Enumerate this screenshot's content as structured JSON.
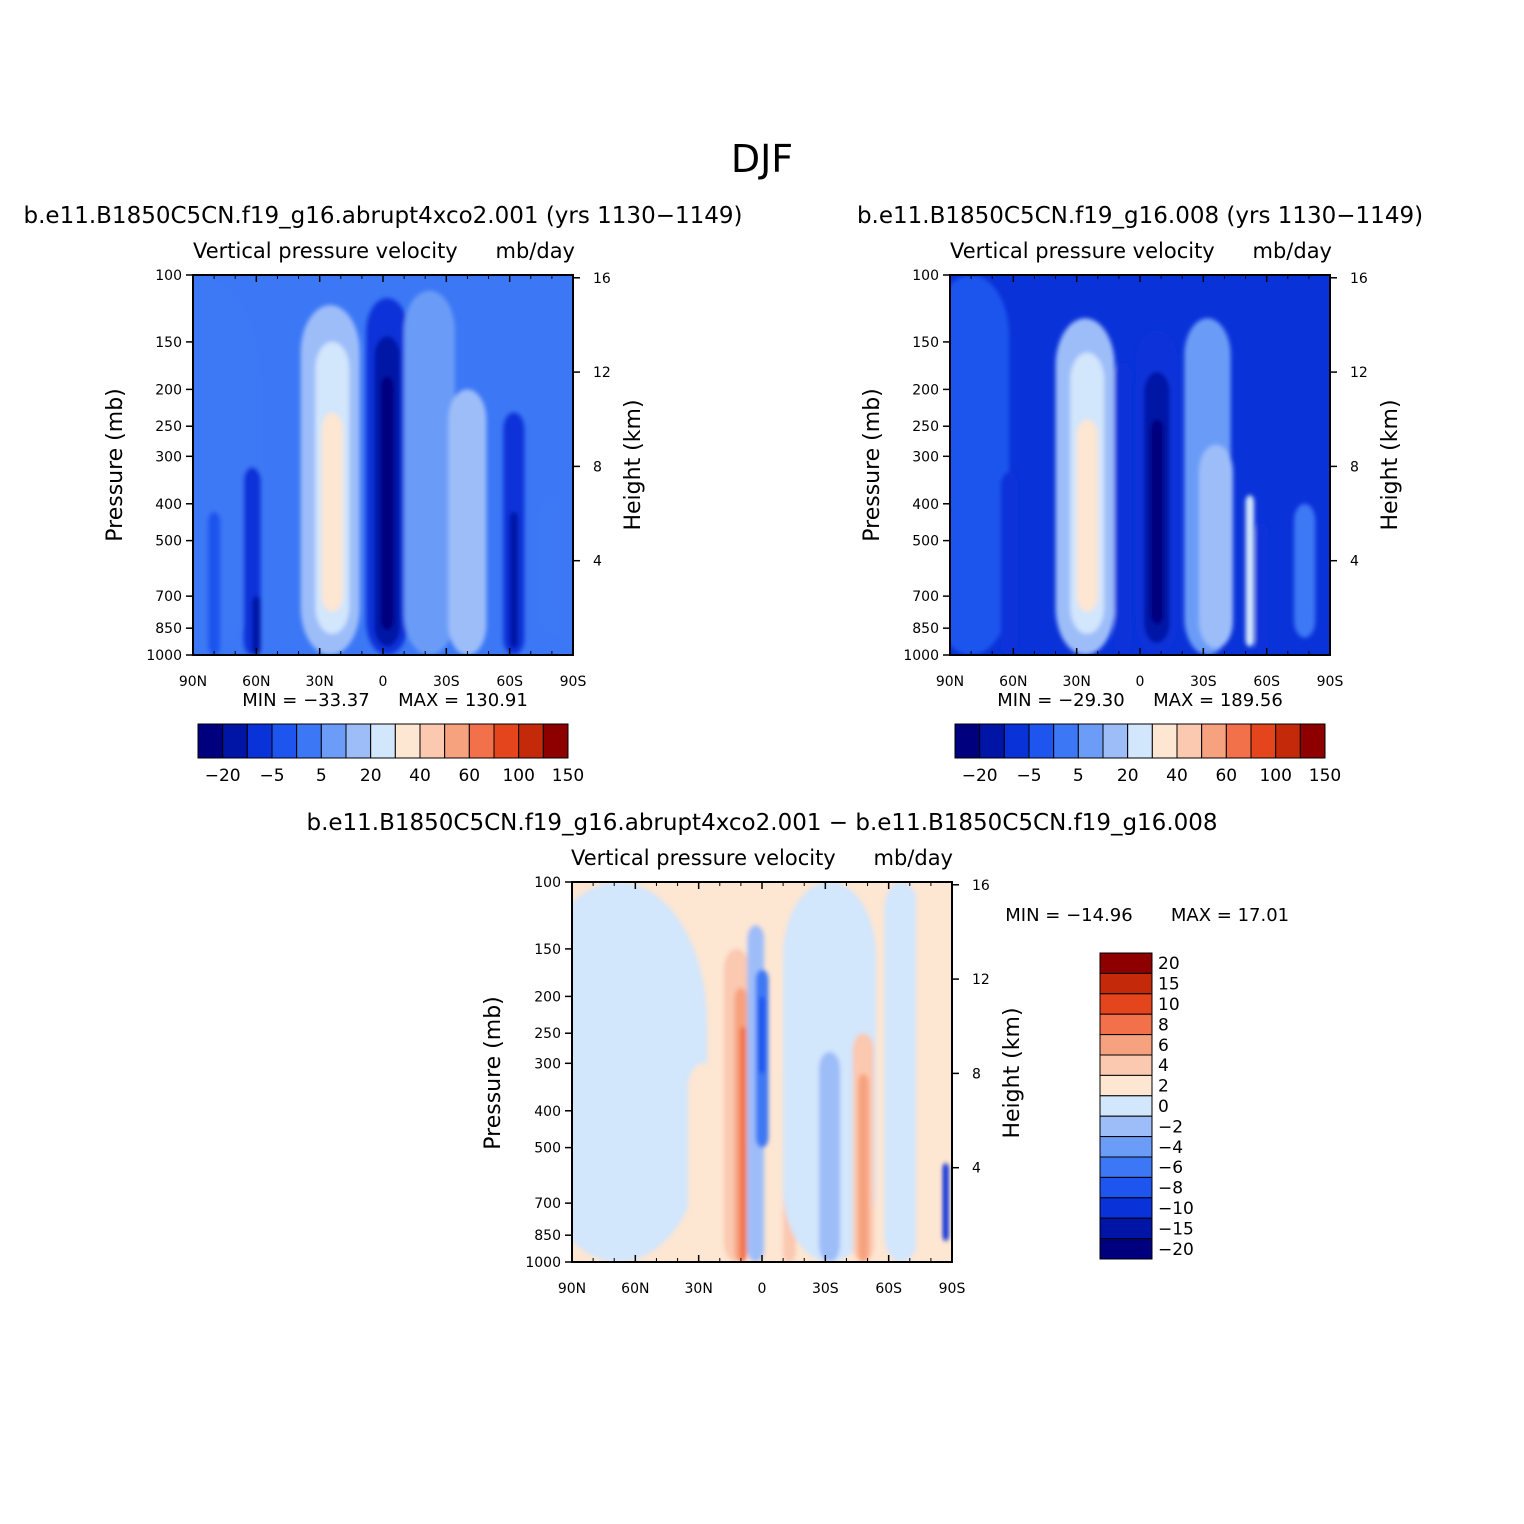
{
  "figure": {
    "title": "DJF"
  },
  "colors": {
    "abs_levels": [
      "#00007f",
      "#0014a5",
      "#0a32d9",
      "#1e55ee",
      "#3c78f5",
      "#6b9cf7",
      "#9dbdf9",
      "#d2e6fc",
      "#fde6d2",
      "#fbc8b0",
      "#f7a27e",
      "#f3714a",
      "#e5451c",
      "#c42a0a",
      "#8e0000"
    ],
    "diff_levels": [
      "#00007f",
      "#0014a5",
      "#0a32d9",
      "#1e55ee",
      "#3c78f5",
      "#6b9cf7",
      "#9dbdf9",
      "#d2e6fc",
      "#fde6d2",
      "#fbc8b0",
      "#f7a27e",
      "#f3714a",
      "#e5451c",
      "#c42a0a",
      "#8e0000"
    ]
  },
  "chart_data": [
    {
      "id": "panel-abrupt4xco2",
      "type": "heatmap",
      "run_title": "b.e11.B1850C5CN.f19_g16.abrupt4xco2.001 (yrs 1130−1149)",
      "variable_label": "Vertical pressure velocity",
      "units_label": "mb/day",
      "xlabel": "",
      "ylabel": "Pressure (mb)",
      "y2label": "Height (km)",
      "x_ticks": [
        "90N",
        "60N",
        "30N",
        "0",
        "30S",
        "60S",
        "90S"
      ],
      "x_range": [
        90,
        -90
      ],
      "y_ticks": [
        "100",
        "150",
        "200",
        "250",
        "300",
        "400",
        "500",
        "700",
        "850",
        "1000"
      ],
      "y_values": [
        100,
        150,
        200,
        250,
        300,
        400,
        500,
        700,
        850,
        1000
      ],
      "y2_ticks": [
        "16",
        "12",
        "8",
        "4"
      ],
      "y2_values": [
        16,
        12,
        8,
        4
      ],
      "min_label": "MIN = −33.37",
      "max_label": "MAX = 130.91",
      "min_value": -33.37,
      "max_value": 130.91,
      "colorbar_labels": [
        "−20",
        "−5",
        "5",
        "20",
        "40",
        "60",
        "100",
        "150"
      ],
      "field": [
        {
          "lat": 88,
          "p_top": 100,
          "p_bot": 1000,
          "level": 4,
          "width": 30
        },
        {
          "lat": 80,
          "p_top": 420,
          "p_bot": 1000,
          "level": 3,
          "width": 3
        },
        {
          "lat": 62,
          "p_top": 320,
          "p_bot": 1000,
          "level": 2,
          "width": 4
        },
        {
          "lat": 60,
          "p_top": 700,
          "p_bot": 1000,
          "level": 1,
          "width": 2
        },
        {
          "lat": 25,
          "p_top": 120,
          "p_bot": 1000,
          "level": 6,
          "width": 14
        },
        {
          "lat": 24,
          "p_top": 150,
          "p_bot": 880,
          "level": 7,
          "width": 8
        },
        {
          "lat": 24,
          "p_top": 230,
          "p_bot": 770,
          "level": 8,
          "width": 5
        },
        {
          "lat": -2,
          "p_top": 115,
          "p_bot": 1000,
          "level": 2,
          "width": 10
        },
        {
          "lat": -2,
          "p_top": 145,
          "p_bot": 950,
          "level": 1,
          "width": 6
        },
        {
          "lat": -2,
          "p_top": 185,
          "p_bot": 860,
          "level": 0,
          "width": 3
        },
        {
          "lat": -22,
          "p_top": 110,
          "p_bot": 1000,
          "level": 5,
          "width": 12
        },
        {
          "lat": -40,
          "p_top": 200,
          "p_bot": 1000,
          "level": 6,
          "width": 9
        },
        {
          "lat": -62,
          "p_top": 230,
          "p_bot": 1000,
          "level": 2,
          "width": 5
        },
        {
          "lat": -62,
          "p_top": 420,
          "p_bot": 960,
          "level": 1,
          "width": 2
        },
        {
          "lat": -80,
          "p_top": 380,
          "p_bot": 900,
          "level": 4,
          "width": 5
        }
      ]
    },
    {
      "id": "panel-control",
      "type": "heatmap",
      "run_title": "b.e11.B1850C5CN.f19_g16.008 (yrs 1130−1149)",
      "variable_label": "Vertical pressure velocity",
      "units_label": "mb/day",
      "xlabel": "",
      "ylabel": "Pressure (mb)",
      "y2label": "Height (km)",
      "x_ticks": [
        "90N",
        "60N",
        "30N",
        "0",
        "30S",
        "60S",
        "90S"
      ],
      "x_range": [
        90,
        -90
      ],
      "y_ticks": [
        "100",
        "150",
        "200",
        "250",
        "300",
        "400",
        "500",
        "700",
        "850",
        "1000"
      ],
      "y_values": [
        100,
        150,
        200,
        250,
        300,
        400,
        500,
        700,
        850,
        1000
      ],
      "y2_ticks": [
        "16",
        "12",
        "8",
        "4"
      ],
      "y2_values": [
        16,
        12,
        8,
        4
      ],
      "min_label": "MIN = −29.30",
      "max_label": "MAX = 189.56",
      "min_value": -29.3,
      "max_value": 189.56,
      "colorbar_labels": [
        "−20",
        "−5",
        "5",
        "20",
        "40",
        "60",
        "100",
        "150"
      ],
      "field": [
        {
          "lat": 80,
          "p_top": 100,
          "p_bot": 1000,
          "level": 3,
          "width": 18
        },
        {
          "lat": 62,
          "p_top": 330,
          "p_bot": 1000,
          "level": 2,
          "width": 4
        },
        {
          "lat": 26,
          "p_top": 130,
          "p_bot": 1000,
          "level": 6,
          "width": 14
        },
        {
          "lat": 25,
          "p_top": 160,
          "p_bot": 880,
          "level": 7,
          "width": 8
        },
        {
          "lat": 25,
          "p_top": 240,
          "p_bot": 770,
          "level": 8,
          "width": 5
        },
        {
          "lat": 8,
          "p_top": 170,
          "p_bot": 1000,
          "level": 2,
          "width": 4
        },
        {
          "lat": -8,
          "p_top": 140,
          "p_bot": 1000,
          "level": 2,
          "width": 10
        },
        {
          "lat": -8,
          "p_top": 180,
          "p_bot": 930,
          "level": 1,
          "width": 6
        },
        {
          "lat": -8,
          "p_top": 240,
          "p_bot": 830,
          "level": 0,
          "width": 3
        },
        {
          "lat": -32,
          "p_top": 130,
          "p_bot": 1000,
          "level": 5,
          "width": 11
        },
        {
          "lat": -36,
          "p_top": 280,
          "p_bot": 960,
          "level": 6,
          "width": 8
        },
        {
          "lat": -52,
          "p_top": 380,
          "p_bot": 950,
          "level": 7,
          "width": 2
        },
        {
          "lat": -58,
          "p_top": 450,
          "p_bot": 1000,
          "level": 2,
          "width": 3
        },
        {
          "lat": -78,
          "p_top": 400,
          "p_bot": 900,
          "level": 4,
          "width": 5
        }
      ]
    },
    {
      "id": "panel-difference",
      "type": "heatmap",
      "run_title": "b.e11.B1850C5CN.f19_g16.abrupt4xco2.001 − b.e11.B1850C5CN.f19_g16.008",
      "variable_label": "Vertical pressure velocity",
      "units_label": "mb/day",
      "xlabel": "",
      "ylabel": "Pressure (mb)",
      "y2label": "Height (km)",
      "x_ticks": [
        "90N",
        "60N",
        "30N",
        "0",
        "30S",
        "60S",
        "90S"
      ],
      "x_range": [
        90,
        -90
      ],
      "y_ticks": [
        "100",
        "150",
        "200",
        "250",
        "300",
        "400",
        "500",
        "700",
        "850",
        "1000"
      ],
      "y_values": [
        100,
        150,
        200,
        250,
        300,
        400,
        500,
        700,
        850,
        1000
      ],
      "y2_ticks": [
        "16",
        "12",
        "8",
        "4"
      ],
      "y2_values": [
        16,
        12,
        8,
        4
      ],
      "min_label": "MIN = −14.96",
      "max_label": "MAX =   17.01",
      "min_value": -14.96,
      "max_value": 17.01,
      "colorbar_labels": [
        "20",
        "15",
        "10",
        "8",
        "6",
        "4",
        "2",
        "0",
        "−2",
        "−4",
        "−6",
        "−8",
        "−10",
        "−15",
        "−20"
      ],
      "field": [
        {
          "lat": 68,
          "p_top": 100,
          "p_bot": 1000,
          "level": 7,
          "width": 42
        },
        {
          "lat": 28,
          "p_top": 300,
          "p_bot": 1000,
          "level": 8,
          "width": 7
        },
        {
          "lat": 14,
          "p_top": 120,
          "p_bot": 1000,
          "level": 8,
          "width": 10
        },
        {
          "lat": 12,
          "p_top": 150,
          "p_bot": 1000,
          "level": 9,
          "width": 6
        },
        {
          "lat": 10,
          "p_top": 190,
          "p_bot": 1000,
          "level": 10,
          "width": 3
        },
        {
          "lat": 9,
          "p_top": 240,
          "p_bot": 1000,
          "level": 11,
          "width": 1.5
        },
        {
          "lat": 3,
          "p_top": 130,
          "p_bot": 1000,
          "level": 6,
          "width": 4
        },
        {
          "lat": 0,
          "p_top": 170,
          "p_bot": 500,
          "level": 4,
          "width": 3
        },
        {
          "lat": 0,
          "p_top": 200,
          "p_bot": 320,
          "level": 3,
          "width": 1.5
        },
        {
          "lat": -13,
          "p_top": 300,
          "p_bot": 1000,
          "level": 9,
          "width": 3
        },
        {
          "lat": -32,
          "p_top": 100,
          "p_bot": 1000,
          "level": 7,
          "width": 22
        },
        {
          "lat": -32,
          "p_top": 280,
          "p_bot": 1000,
          "level": 6,
          "width": 5
        },
        {
          "lat": -48,
          "p_top": 250,
          "p_bot": 1000,
          "level": 9,
          "width": 5
        },
        {
          "lat": -48,
          "p_top": 320,
          "p_bot": 1000,
          "level": 10,
          "width": 2.5
        },
        {
          "lat": -66,
          "p_top": 100,
          "p_bot": 1000,
          "level": 7,
          "width": 8
        },
        {
          "lat": -78,
          "p_top": 100,
          "p_bot": 1000,
          "level": 8,
          "width": 5
        },
        {
          "lat": -87,
          "p_top": 550,
          "p_bot": 880,
          "level": 2,
          "width": 1.5
        }
      ]
    }
  ]
}
